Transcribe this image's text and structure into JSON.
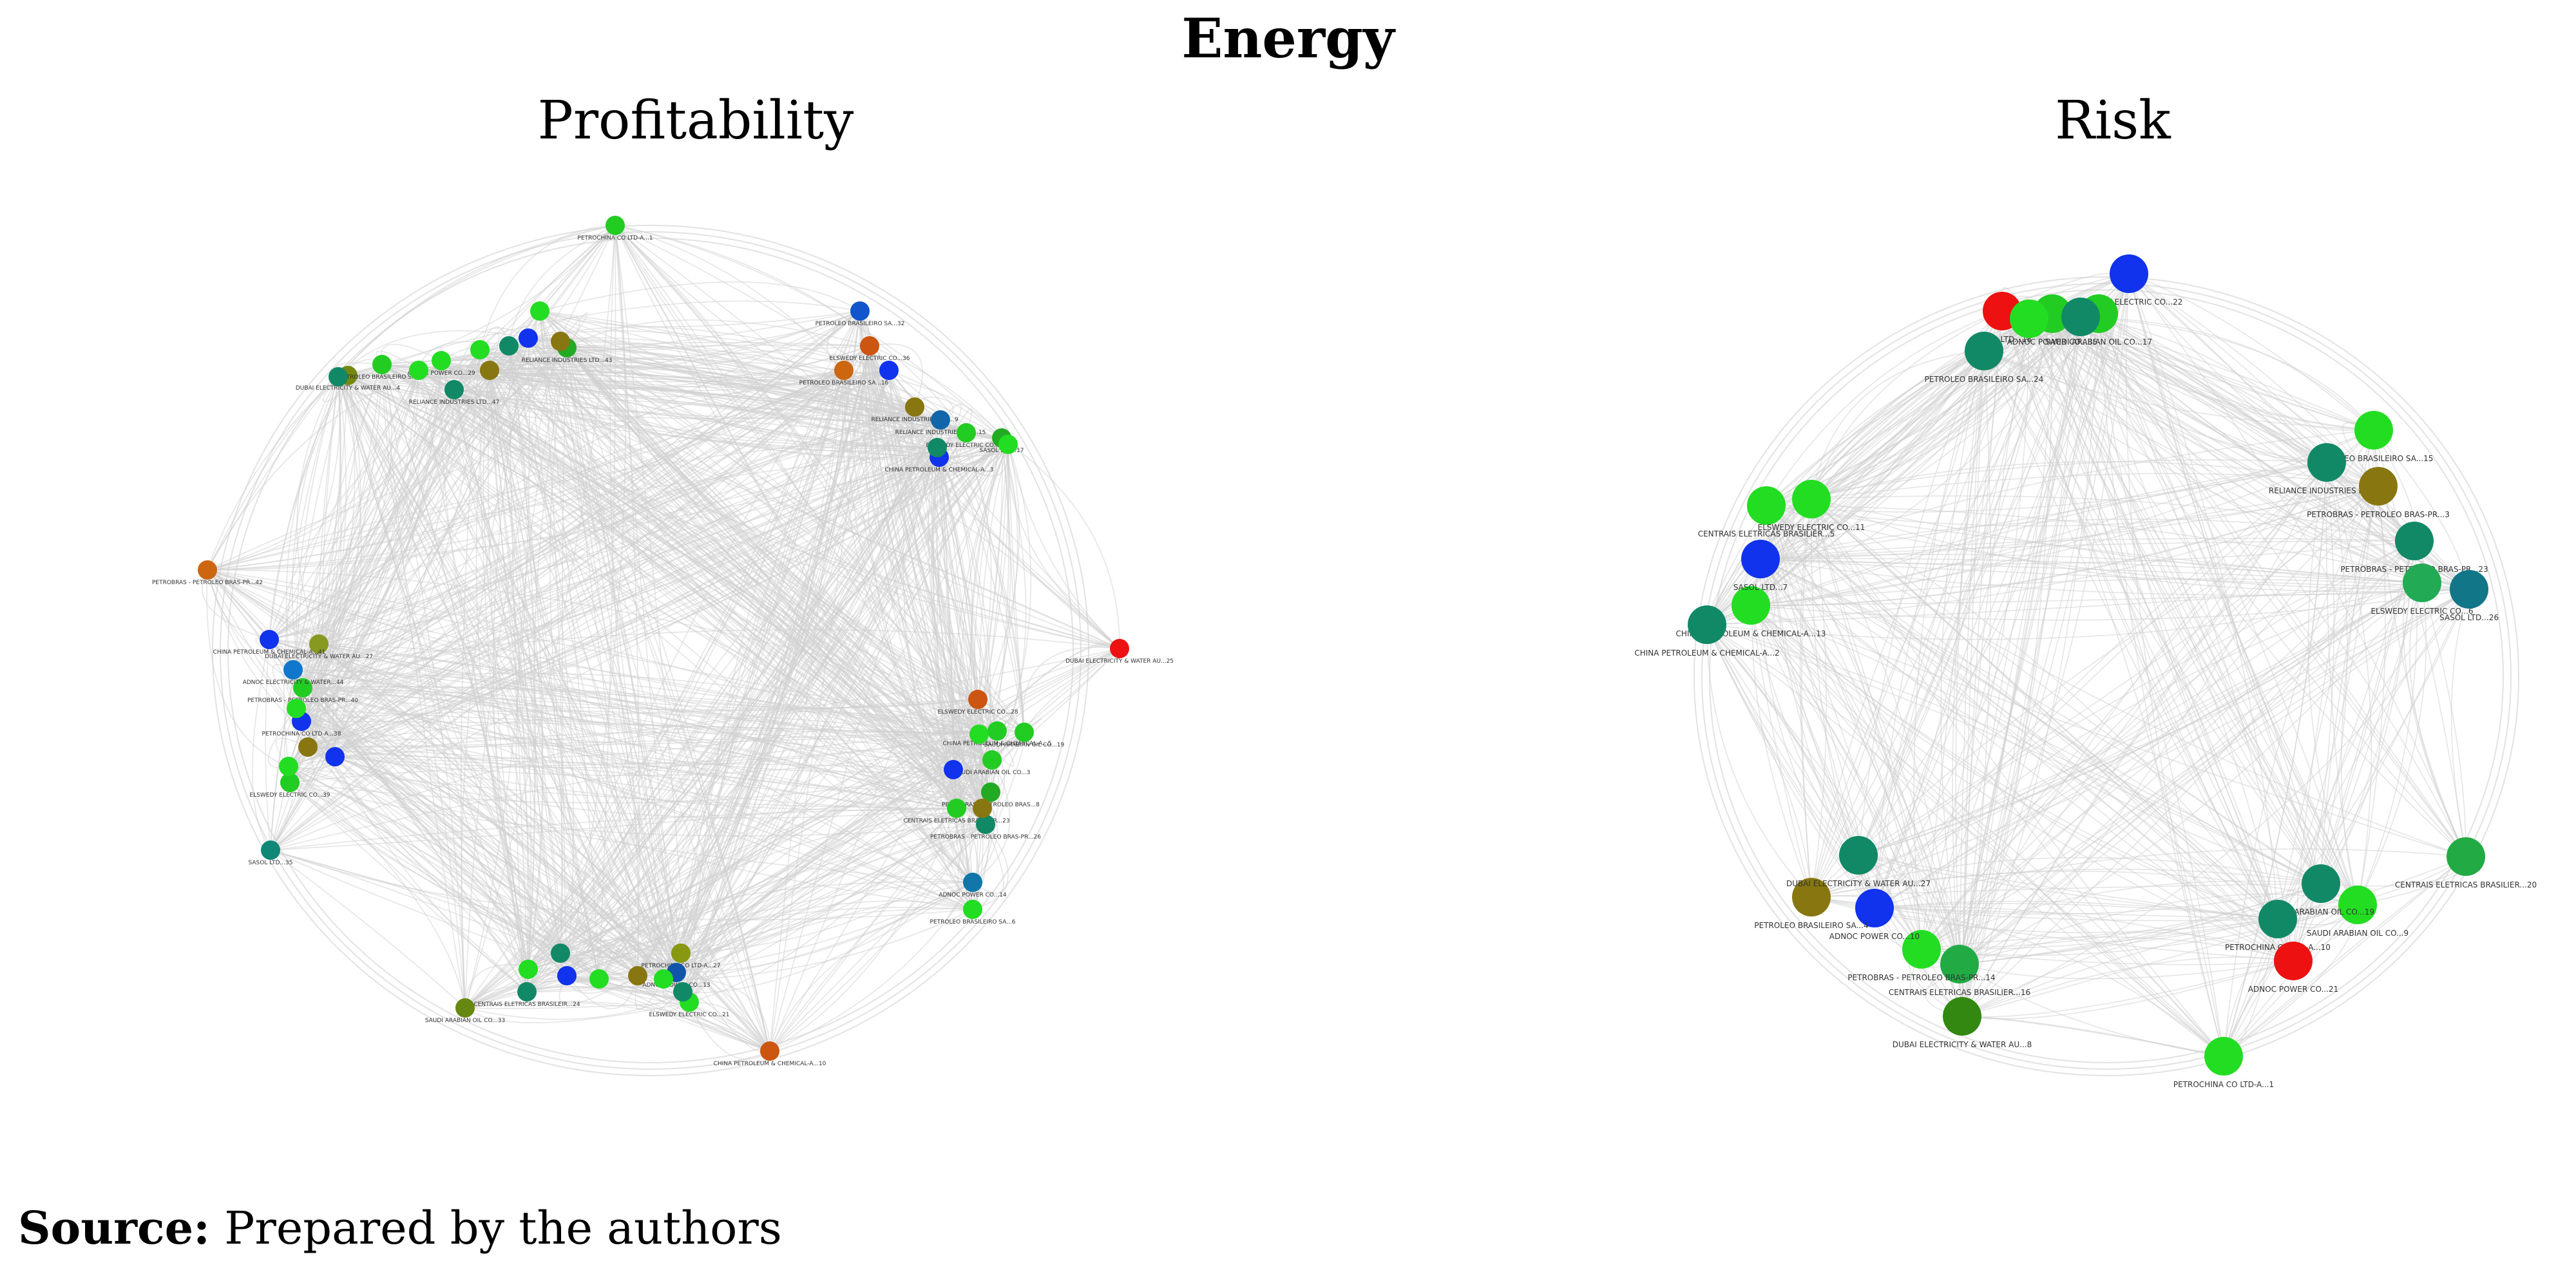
{
  "figure": {
    "title": "Energy",
    "panels": [
      {
        "id": "left",
        "title": "Profitability"
      },
      {
        "id": "right",
        "title": "Risk"
      }
    ]
  },
  "source": {
    "label": "Source:",
    "text": " Prepared by the authors"
  },
  "colors": {
    "edge": "#cfcfcf",
    "green": "#22dd22",
    "teal": "#118866",
    "blue": "#1133ee",
    "red": "#ee1111",
    "olive": "#887711",
    "orange": "#cc5511"
  },
  "networks": {
    "left": {
      "nodes": [
        {
          "label": "PETROCHINA CO LTD-A...1",
          "color": "#22cc22"
        },
        {
          "label": "PETROLEO BRASILEIRO SA...32",
          "color": "#1155cc"
        },
        {
          "label": "ELSWEDY ELECTRIC CO...36",
          "color": "#cc5511"
        },
        {
          "label": "PETROLEO BRASILEIRO SA...16",
          "color": "#cc6611"
        },
        {
          "label": "RELIANCE INDUSTRIES LTD...9",
          "color": "#887711"
        },
        {
          "label": "RELIANCE INDUSTRIES LTD...15",
          "color": "#1166aa"
        },
        {
          "label": "ELSWEDY ELECTRIC CO...12",
          "color": "#22cc22"
        },
        {
          "label": "SASOL LTD...17",
          "color": "#22aa22"
        },
        {
          "label": "CHINA PETROLEUM & CHEMICAL-A...3",
          "color": "#1133ee"
        },
        {
          "label": "DUBAI ELECTRICITY & WATER AU...25",
          "color": "#ee1111"
        },
        {
          "label": "ELSWEDY ELECTRIC CO...28",
          "color": "#cc5511"
        },
        {
          "label": "CHINA PETROLEUM & CHEMICAL-A...5",
          "color": "#22cc22"
        },
        {
          "label": "SAUDI ARABIAN OIL CO...19",
          "color": "#22cc22"
        },
        {
          "label": "SAUDI ARABIAN OIL CO...3",
          "color": "#22cc22"
        },
        {
          "label": "PETROBRAS - PETROLEO BRAS...8",
          "color": "#22aa22"
        },
        {
          "label": "CENTRAIS ELETRICAS BRASILEIR...23",
          "color": "#22cc22"
        },
        {
          "label": "PETROBRAS - PETROLEO BRAS-PR...26",
          "color": "#118866"
        },
        {
          "label": "ADNOC POWER CO...14",
          "color": "#1177aa"
        },
        {
          "label": "PETROLEO BRASILEIRO SA...6",
          "color": "#22dd22"
        },
        {
          "label": "CHINA PETROLEUM & CHEMICAL-A...10",
          "color": "#cc5511"
        },
        {
          "label": "ELSWEDY ELECTRIC CO...21",
          "color": "#22dd22"
        },
        {
          "label": "PETROCHINA CO LTD-A...27",
          "color": "#889911"
        },
        {
          "label": "ADNOC POWER CO...13",
          "color": "#1155aa"
        },
        {
          "label": "CENTRAIS ELETRICAS BRASILEIR...24",
          "color": "#118866"
        },
        {
          "label": "SAUDI ARABIAN OIL CO...33",
          "color": "#668811"
        },
        {
          "label": "SASOL LTD...35",
          "color": "#118877"
        },
        {
          "label": "ELSWEDY ELECTRIC CO...39",
          "color": "#22cc22"
        },
        {
          "label": "PETROCHINA CO LTD-A...38",
          "color": "#1133ee"
        },
        {
          "label": "PETROBRAS - PETROLEO BRAS-PR...40",
          "color": "#22cc22"
        },
        {
          "label": "ADNOC ELECTRICITY & WATER...44",
          "color": "#1177cc"
        },
        {
          "label": "DUBAI ELECTRICITY & WATER AU...27",
          "color": "#889922"
        },
        {
          "label": "CHINA PETROLEUM & CHEMICAL-A...41",
          "color": "#1133ee"
        },
        {
          "label": "PETROBRAS - PETROLEO BRAS-PR...42",
          "color": "#cc6611"
        },
        {
          "label": "DUBAI ELECTRICITY & WATER AU...4",
          "color": "#778811"
        },
        {
          "label": "PETROLEO BRASILEIRO SA...7",
          "color": "#22cc22"
        },
        {
          "label": "ADNOC POWER CO...29",
          "color": "#22dd22"
        },
        {
          "label": "RELIANCE INDUSTRIES LTD...47",
          "color": "#118866"
        },
        {
          "label": "RELIANCE INDUSTRIES LTD...43",
          "color": "#22aa22"
        }
      ]
    },
    "right": {
      "nodes": [
        {
          "label": "ELSWEDY ELECTRIC CO...22",
          "color": "#1133ee"
        },
        {
          "label": "SASOL LTD...18",
          "color": "#ee1111"
        },
        {
          "label": "ADNOC POWER CO...35",
          "color": "#22cc22"
        },
        {
          "label": "SAUDI ARABIAN OIL CO...17",
          "color": "#22cc22"
        },
        {
          "label": "PETROLEO BRASILEIRO SA...24",
          "color": "#118866"
        },
        {
          "label": "PETROLEO BRASILEIRO SA...15",
          "color": "#22dd22"
        },
        {
          "label": "RELIANCE INDUSTRIES LTD...8",
          "color": "#118866"
        },
        {
          "label": "PETROBRAS - PETROLEO BRAS-PR...3",
          "color": "#887711"
        },
        {
          "label": "PETROBRAS - PETROLEO BRAS-PR...23",
          "color": "#118866"
        },
        {
          "label": "ELSWEDY ELECTRIC CO...6",
          "color": "#22aa55"
        },
        {
          "label": "SASOL LTD...26",
          "color": "#117788"
        },
        {
          "label": "CENTRAIS ELETRICAS BRASILIER...20",
          "color": "#22aa44"
        },
        {
          "label": "SAUDI ARABIAN OIL CO...9",
          "color": "#22dd22"
        },
        {
          "label": "SAUDI ARABIAN OIL CO...19",
          "color": "#118866"
        },
        {
          "label": "PETROCHINA CO LTD-A...10",
          "color": "#118866"
        },
        {
          "label": "ADNOC POWER CO...21",
          "color": "#ee1111"
        },
        {
          "label": "PETROCHINA CO LTD-A...1",
          "color": "#22dd22"
        },
        {
          "label": "DUBAI ELECTRICITY & WATER AU...8",
          "color": "#338811"
        },
        {
          "label": "CENTRAIS ELETRICAS BRASILIER...16",
          "color": "#22aa44"
        },
        {
          "label": "PETROBRAS - PETROLEO BRAS-PR...14",
          "color": "#22dd22"
        },
        {
          "label": "ADNOC POWER CO...10",
          "color": "#1133ee"
        },
        {
          "label": "PETROLEO BRASILEIRO SA...4",
          "color": "#887711"
        },
        {
          "label": "DUBAI ELECTRICITY & WATER AU...27",
          "color": "#118866"
        },
        {
          "label": "CHINA PETROLEUM & CHEMICAL-A...13",
          "color": "#22dd22"
        },
        {
          "label": "CHINA PETROLEUM & CHEMICAL-A...2",
          "color": "#118866"
        },
        {
          "label": "SASOL LTD...7",
          "color": "#1133ee"
        },
        {
          "label": "CENTRAIS ELETRICAS BRASILIER...5",
          "color": "#22dd22"
        },
        {
          "label": "ELSWEDY ELECTRIC CO...11",
          "color": "#22dd22"
        }
      ]
    }
  }
}
